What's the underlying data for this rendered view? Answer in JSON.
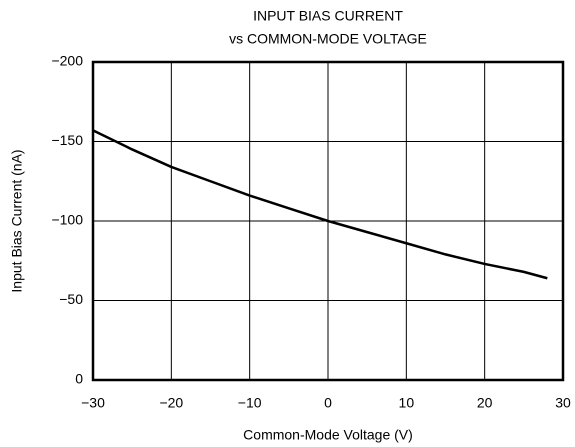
{
  "chart_data": {
    "type": "line",
    "title": [
      "INPUT BIAS CURRENT",
      "vs COMMON-MODE VOLTAGE"
    ],
    "x_label": "Common-Mode Voltage (V)",
    "y_label": "Input Bias Current (nA)",
    "x": [
      -30,
      -25,
      -20,
      -15,
      -10,
      -5,
      0,
      5,
      10,
      15,
      20,
      25,
      28
    ],
    "series": [
      {
        "color": "#000000",
        "values": [
          -157,
          -145,
          -134,
          -125,
          -116,
          -108,
          -100,
          -93,
          -86,
          -79,
          -73,
          -68,
          -64
        ]
      }
    ],
    "xlim": [
      -30,
      30
    ],
    "xticks": [
      {
        "value": -30,
        "label": "−30"
      },
      {
        "value": -20,
        "label": "−20"
      },
      {
        "value": -10,
        "label": "−10"
      },
      0,
      10,
      20,
      30
    ],
    "ylim": [
      0,
      -200
    ],
    "yticks": [
      0,
      {
        "value": -50,
        "label": "−50"
      },
      {
        "value": -100,
        "label": "−100"
      },
      {
        "value": -150,
        "label": "−150"
      },
      {
        "value": -200,
        "label": "−200"
      }
    ],
    "grid": true
  }
}
